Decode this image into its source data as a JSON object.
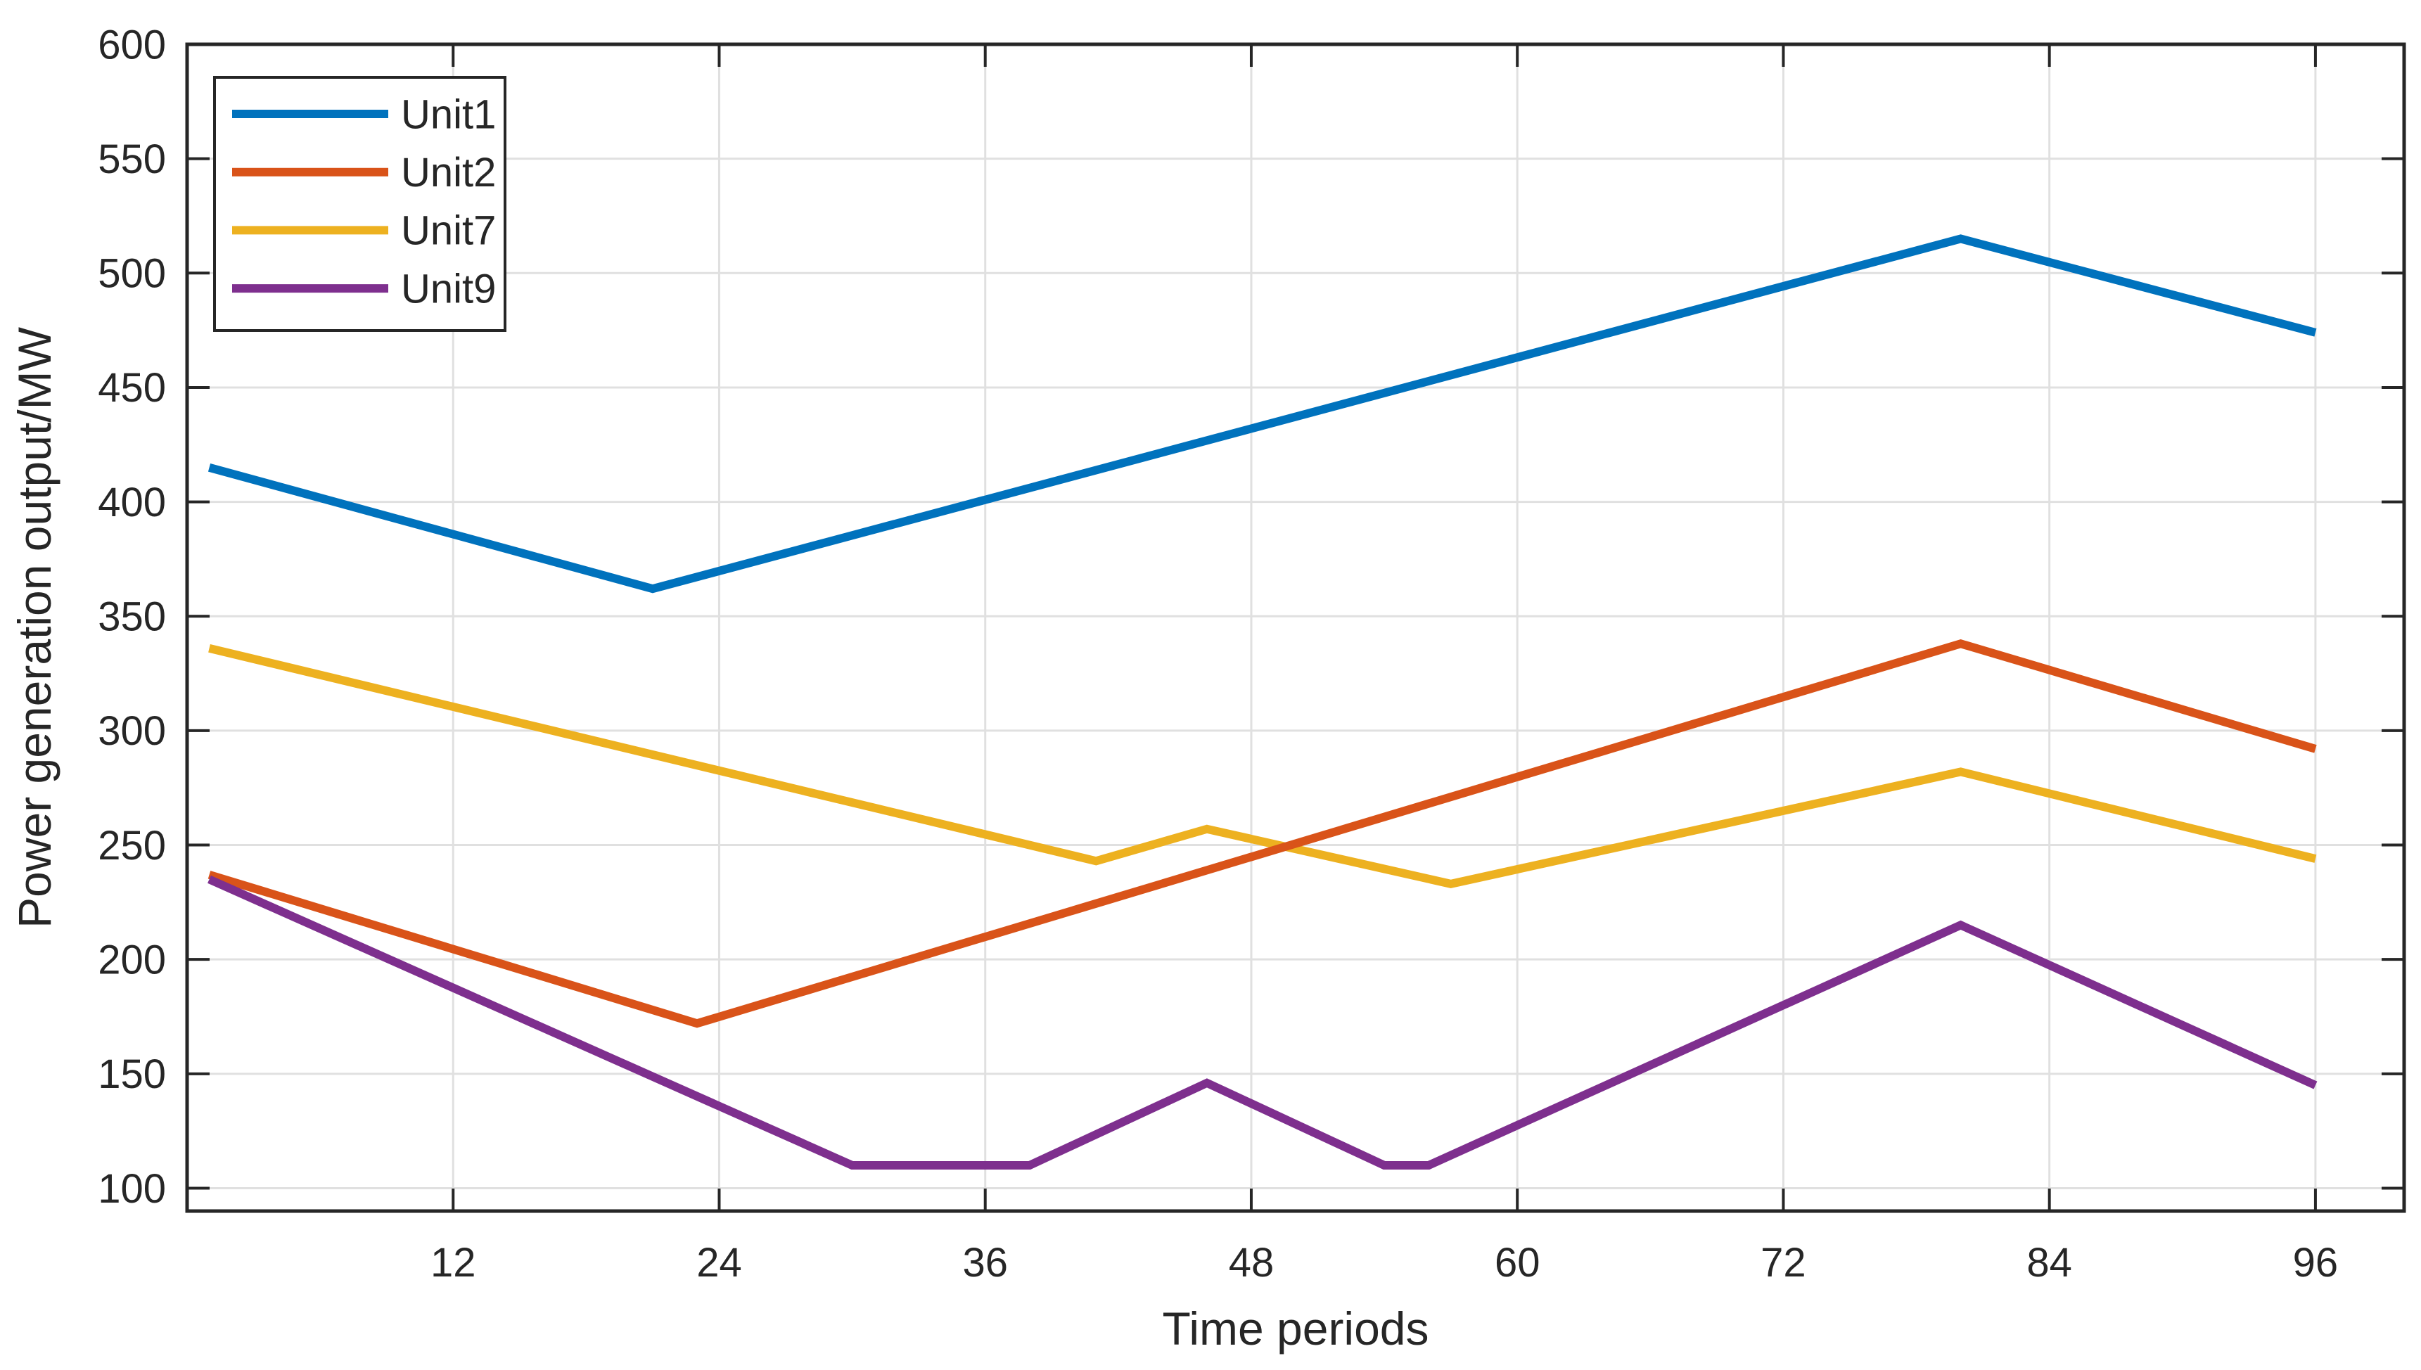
{
  "chart_data": {
    "type": "line",
    "title": "",
    "xlabel": "Time periods",
    "ylabel": "Power generation output/MW",
    "xlim": [
      0,
      100
    ],
    "ylim": [
      90,
      600
    ],
    "xticks": [
      12,
      24,
      36,
      48,
      60,
      72,
      84,
      96
    ],
    "yticks": [
      100,
      150,
      200,
      250,
      300,
      350,
      400,
      450,
      500,
      550,
      600
    ],
    "grid": true,
    "legend_position": "top-left",
    "legend_order": [
      "Unit1",
      "Unit2",
      "Unit7",
      "Unit9"
    ],
    "draw_order": [
      "Unit1",
      "Unit7",
      "Unit2",
      "Unit9"
    ],
    "series": [
      {
        "name": "Unit1",
        "color": "#0072BD",
        "points": [
          [
            1,
            415
          ],
          [
            21,
            362
          ],
          [
            80,
            515
          ],
          [
            96,
            474
          ]
        ]
      },
      {
        "name": "Unit2",
        "color": "#D95319",
        "points": [
          [
            1,
            237
          ],
          [
            23,
            172
          ],
          [
            80,
            338
          ],
          [
            96,
            292
          ]
        ]
      },
      {
        "name": "Unit7",
        "color": "#EDB120",
        "points": [
          [
            1,
            336
          ],
          [
            41,
            243
          ],
          [
            46,
            257
          ],
          [
            57,
            233
          ],
          [
            80,
            282
          ],
          [
            96,
            244
          ]
        ]
      },
      {
        "name": "Unit9",
        "color": "#7E2F8E",
        "points": [
          [
            1,
            235
          ],
          [
            30,
            110
          ],
          [
            38,
            110
          ],
          [
            46,
            146
          ],
          [
            54,
            110
          ],
          [
            56,
            110
          ],
          [
            80,
            215
          ],
          [
            96,
            145
          ]
        ]
      }
    ],
    "colors": {
      "axis": "#262626",
      "grid": "#E0E0E0",
      "background": "#FFFFFF"
    }
  }
}
